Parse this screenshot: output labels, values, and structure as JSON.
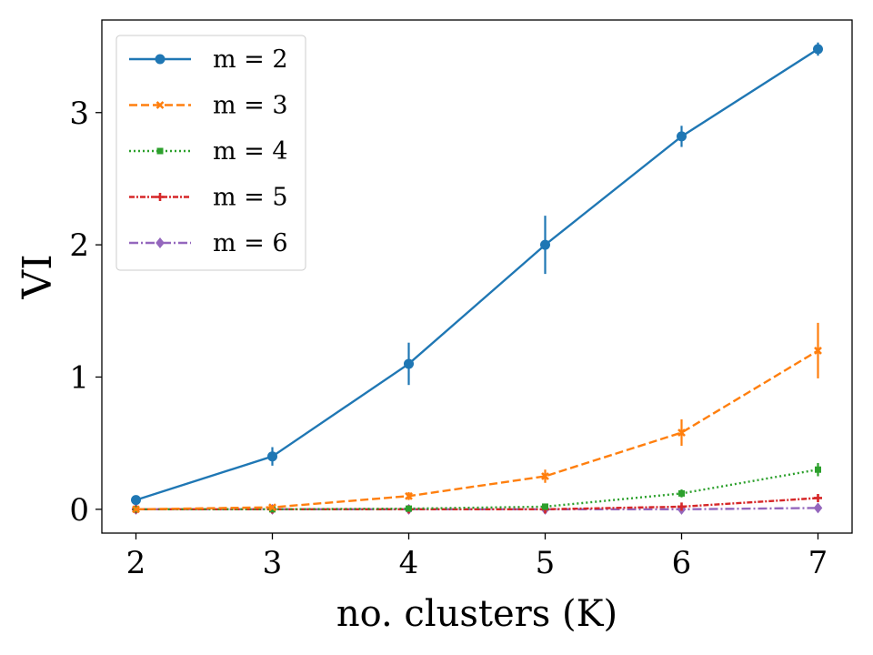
{
  "chart_data": {
    "type": "line",
    "xlabel": "no. clusters (K)",
    "ylabel": "VI",
    "x": [
      2,
      3,
      4,
      5,
      6,
      7
    ],
    "xticks": [
      "2",
      "3",
      "4",
      "5",
      "6",
      "7"
    ],
    "yticks": [
      "0",
      "1",
      "2",
      "3"
    ],
    "xlim": [
      1.75,
      7.25
    ],
    "ylim": [
      -0.18,
      3.7
    ],
    "grid": false,
    "legend_position": "top-left",
    "series": [
      {
        "name": "m = 2",
        "color": "#1f77b4",
        "dash": "solid",
        "marker": "circle",
        "values": [
          0.07,
          0.4,
          1.1,
          2.0,
          2.82,
          3.48
        ],
        "errors": [
          0.02,
          0.07,
          0.16,
          0.22,
          0.08,
          0.05
        ]
      },
      {
        "name": "m = 3",
        "color": "#ff7f0e",
        "dash": "dashed",
        "marker": "x",
        "values": [
          0.0,
          0.015,
          0.1,
          0.25,
          0.58,
          1.2
        ],
        "errors": [
          0.005,
          0.01,
          0.03,
          0.05,
          0.1,
          0.21
        ]
      },
      {
        "name": "m = 4",
        "color": "#2ca02c",
        "dash": "dotted",
        "marker": "square",
        "values": [
          0.0,
          0.0,
          0.005,
          0.02,
          0.12,
          0.3
        ],
        "errors": [
          0.002,
          0.002,
          0.003,
          0.01,
          0.03,
          0.05
        ]
      },
      {
        "name": "m = 5",
        "color": "#d62728",
        "dash": "dashdot-dense",
        "marker": "plus",
        "values": [
          0.0,
          0.0,
          0.0,
          0.0,
          0.02,
          0.085
        ],
        "errors": [
          0.001,
          0.001,
          0.001,
          0.002,
          0.01,
          0.02
        ]
      },
      {
        "name": "m = 6",
        "color": "#9467bd",
        "dash": "dashdot",
        "marker": "diamond",
        "values": [
          0.0,
          0.0,
          0.0,
          0.0,
          0.0,
          0.01
        ],
        "errors": [
          0.001,
          0.001,
          0.001,
          0.001,
          0.002,
          0.004
        ]
      }
    ]
  }
}
